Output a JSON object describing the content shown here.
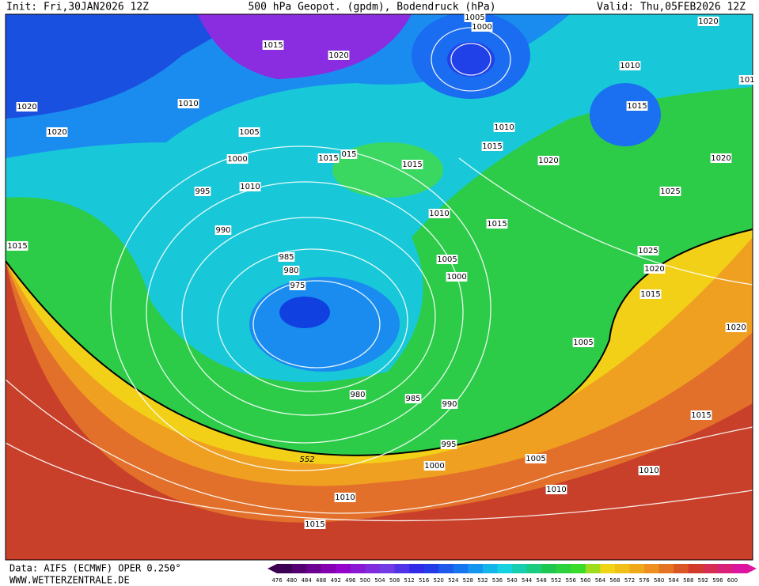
{
  "header": {
    "init": "Init: Fri,30JAN2026 12Z",
    "title": "500 hPa Geopot. (gpdm), Bodendruck (hPa)",
    "valid": "Valid: Thu,05FEB2026 12Z"
  },
  "map": {
    "isobar_labels": [
      "1020",
      "1005",
      "1000",
      "1015",
      "1020",
      "1010",
      "1020",
      "1010",
      "1015",
      "1020",
      "1005",
      "1010",
      "1015",
      "1015",
      "015",
      "1000",
      "1015",
      "1020",
      "1020",
      "995",
      "1010",
      "1025",
      "1010",
      "1015",
      "990",
      "1015",
      "1025",
      "985",
      "1005",
      "1020",
      "980",
      "1000",
      "975",
      "1015",
      "1020",
      "1005",
      "980",
      "985",
      "990",
      "1015",
      "995",
      "1005",
      "1000",
      "1010",
      "1010",
      "1010",
      "1015",
      "101"
    ],
    "geopotential_label": "552"
  },
  "legend": {
    "levels": [
      476,
      480,
      484,
      488,
      492,
      496,
      500,
      504,
      508,
      512,
      516,
      520,
      524,
      528,
      532,
      536,
      540,
      544,
      548,
      552,
      556,
      560,
      564,
      568,
      572,
      576,
      580,
      584,
      588,
      592,
      596,
      600
    ]
  },
  "footer": {
    "data": "Data: AIFS (ECMWF) OPER 0.250°",
    "site": "WWW.WETTERZENTRALE.DE"
  }
}
